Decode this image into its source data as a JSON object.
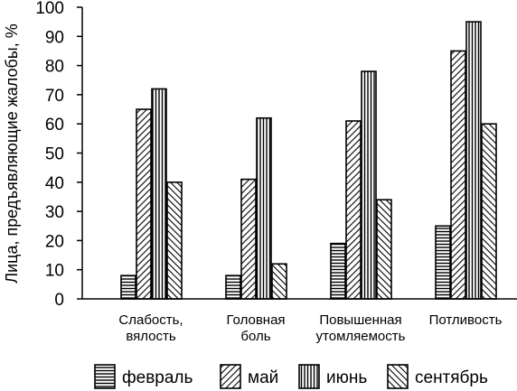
{
  "chart_data": {
    "type": "bar",
    "ylabel": "Лица, предъявляющие жалобы, %",
    "xlabel": "",
    "ylim": [
      0,
      100
    ],
    "yticks": [
      0,
      10,
      20,
      30,
      40,
      50,
      60,
      70,
      80,
      90,
      100
    ],
    "grid": false,
    "legend_position": "bottom",
    "categories": [
      [
        "Слабость,",
        "вялость"
      ],
      [
        "Головная",
        "боль"
      ],
      [
        "Повышенная",
        "утомляемость"
      ],
      [
        "Потливость"
      ]
    ],
    "series": [
      {
        "name": "февраль",
        "pattern": "horizontal",
        "values": [
          8,
          8,
          19,
          25
        ]
      },
      {
        "name": "май",
        "pattern": "diagonal",
        "values": [
          65,
          41,
          61,
          85
        ]
      },
      {
        "name": "июнь",
        "pattern": "vertical",
        "values": [
          72,
          62,
          78,
          95
        ]
      },
      {
        "name": "сентябрь",
        "pattern": "crosshatch",
        "values": [
          40,
          12,
          34,
          60
        ]
      }
    ]
  }
}
